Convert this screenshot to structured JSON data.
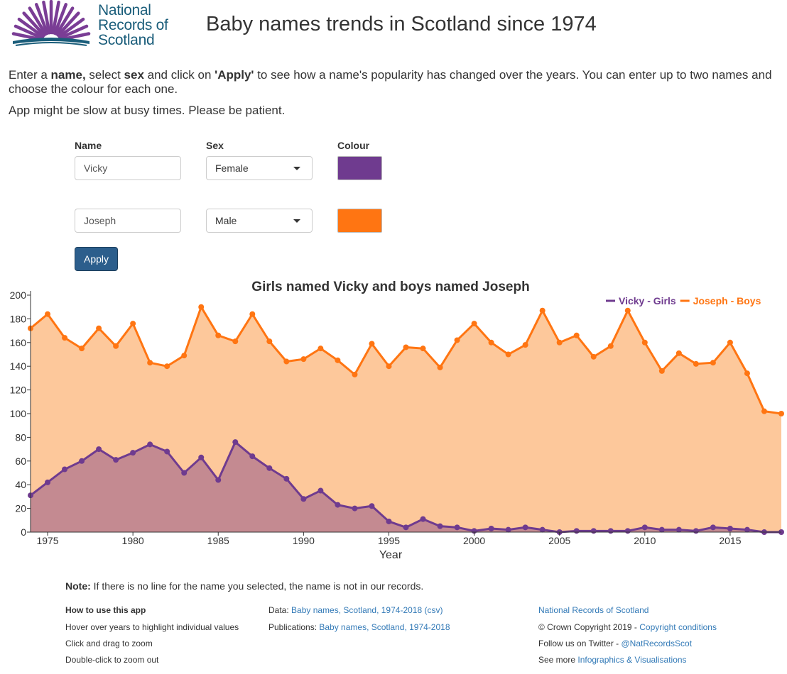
{
  "header": {
    "logo_lines": [
      "National",
      "Records of",
      "Scotland"
    ],
    "title": "Baby names trends in Scotland since 1974"
  },
  "intro": {
    "part1": "Enter a ",
    "name_word": "name,",
    "part2": " select ",
    "sex_word": "sex",
    "part3": " and click on ",
    "apply_word": "'Apply'",
    "part4": " to see how a name's popularity has changed over the years. You can enter up to two names and choose the colour for each one.",
    "slow_notice": "App might be slow at busy times. Please be patient."
  },
  "form": {
    "name_label": "Name",
    "sex_label": "Sex",
    "colour_label": "Colour",
    "rows": [
      {
        "name": "Vicky",
        "sex": "Female",
        "colour": "#6f3b8f"
      },
      {
        "name": "Joseph",
        "sex": "Male",
        "colour": "#ff7512"
      }
    ],
    "apply_label": "Apply",
    "apply_color": "#2c5e8c"
  },
  "chart_data": {
    "type": "area",
    "title": "Girls named Vicky and boys named Joseph",
    "xlabel": "Year",
    "ylabel": "",
    "xlim": [
      1974,
      2018
    ],
    "ylim": [
      0,
      200
    ],
    "x_ticks": [
      "1975",
      "1980",
      "1985",
      "1990",
      "1995",
      "2000",
      "2005",
      "2010",
      "2015"
    ],
    "y_ticks": [
      "0",
      "20",
      "40",
      "60",
      "80",
      "100",
      "120",
      "140",
      "160",
      "180",
      "200"
    ],
    "legend_position": "top-right",
    "grid": false,
    "x": [
      1974,
      1975,
      1976,
      1977,
      1978,
      1979,
      1980,
      1981,
      1982,
      1983,
      1984,
      1985,
      1986,
      1987,
      1988,
      1989,
      1990,
      1991,
      1992,
      1993,
      1994,
      1995,
      1996,
      1997,
      1998,
      1999,
      2000,
      2001,
      2002,
      2003,
      2004,
      2005,
      2006,
      2007,
      2008,
      2009,
      2010,
      2011,
      2012,
      2013,
      2014,
      2015,
      2016,
      2017,
      2018
    ],
    "series": [
      {
        "name": "Joseph - Boys",
        "color": "#ff7512",
        "fill": "#fdc89b",
        "values": [
          172,
          184,
          164,
          155,
          172,
          157,
          176,
          143,
          140,
          149,
          190,
          166,
          161,
          184,
          161,
          144,
          146,
          155,
          145,
          133,
          159,
          140,
          156,
          155,
          139,
          162,
          176,
          160,
          150,
          158,
          187,
          160,
          166,
          148,
          157,
          187,
          160,
          136,
          151,
          142,
          143,
          160,
          134,
          102,
          100
        ]
      },
      {
        "name": "Vicky - Girls",
        "color": "#6f3b8f",
        "fill": "#c48a91",
        "values": [
          31,
          42,
          53,
          60,
          70,
          61,
          67,
          74,
          68,
          50,
          63,
          44,
          76,
          64,
          54,
          45,
          28,
          35,
          23,
          20,
          22,
          9,
          4,
          11,
          5,
          4,
          1,
          3,
          2,
          4,
          2,
          0,
          1,
          1,
          1,
          1,
          4,
          2,
          2,
          1,
          4,
          3,
          2,
          0,
          0
        ]
      }
    ]
  },
  "note": {
    "bold": "Note:",
    "text": " If there is no line for the name you selected, the name is not in our records."
  },
  "footer": {
    "how_title": "How to use this app",
    "how_items": [
      "Hover over years to highlight individual values",
      "Click and drag to zoom",
      "Double-click to zoom out"
    ],
    "data_label": "Data: ",
    "data_link": "Baby names, Scotland, 1974-2018 (csv)",
    "pub_label": "Publications: ",
    "pub_link": "Baby names, Scotland, 1974-2018",
    "nrs_link": "National Records of Scotland",
    "copyright_text": "© Crown Copyright 2019 - ",
    "copyright_link": "Copyright conditions",
    "twitter_text": "Follow us on Twitter - ",
    "twitter_link": "@NatRecordsScot",
    "seemore_text": "See more ",
    "seemore_link": "Infographics & Visualisations"
  }
}
